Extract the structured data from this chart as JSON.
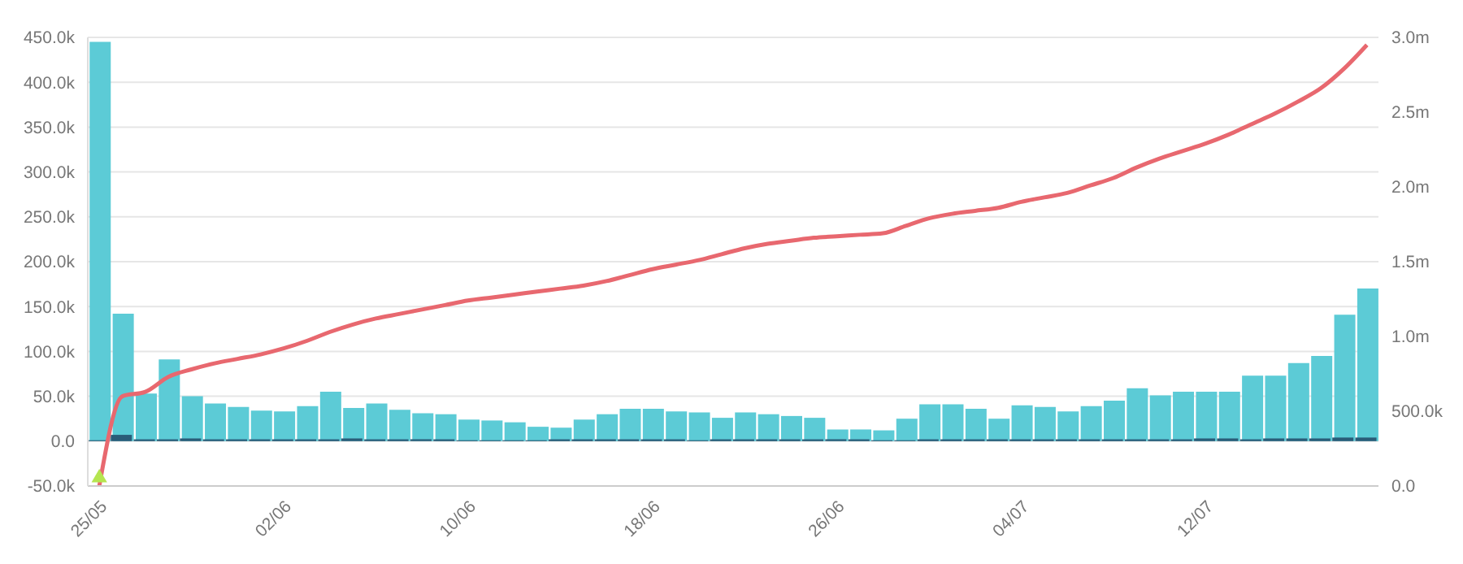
{
  "chart_data": {
    "type": "bar",
    "categories": [
      "25/05",
      null,
      null,
      null,
      null,
      null,
      null,
      null,
      "02/06",
      null,
      null,
      null,
      null,
      null,
      null,
      null,
      "10/06",
      null,
      null,
      null,
      null,
      null,
      null,
      null,
      "18/06",
      null,
      null,
      null,
      null,
      null,
      null,
      null,
      "26/06",
      null,
      null,
      null,
      null,
      null,
      null,
      null,
      "04/07",
      null,
      null,
      null,
      null,
      null,
      null,
      null,
      "12/07",
      null,
      null,
      null,
      null,
      null,
      null,
      null
    ],
    "series": [
      {
        "color": "#5ccbd6",
        "values": [
          445000,
          142000,
          53000,
          91000,
          50000,
          42000,
          38000,
          34000,
          33000,
          39000,
          55000,
          37000,
          42000,
          35000,
          31000,
          30000,
          24000,
          23000,
          21000,
          16000,
          15000,
          24000,
          30000,
          36000,
          36000,
          33000,
          32000,
          26000,
          32000,
          30000,
          28000,
          26000,
          13000,
          13000,
          12000,
          25000,
          41000,
          41000,
          36000,
          25000,
          40000,
          38000,
          33000,
          39000,
          45000,
          59000,
          51000,
          55000,
          55000,
          55000,
          73000,
          73000,
          87000,
          95000,
          141000,
          170000
        ]
      },
      {
        "color": "#2a5c78",
        "values": [
          1000,
          7000,
          2000,
          2000,
          3000,
          2000,
          2000,
          2000,
          2000,
          2000,
          2000,
          3000,
          2000,
          2000,
          2000,
          2000,
          1000,
          1000,
          1000,
          1000,
          2000,
          2000,
          2000,
          2000,
          2000,
          2000,
          1000,
          2000,
          2000,
          2000,
          2000,
          2000,
          2000,
          2000,
          1000,
          1000,
          2000,
          2000,
          2000,
          2000,
          2000,
          2000,
          2000,
          2000,
          2000,
          2000,
          2000,
          2000,
          3000,
          3000,
          2000,
          3000,
          3000,
          3000,
          4000,
          4000
        ]
      },
      {
        "type": "scatter",
        "color": "#b5e550",
        "marker": "triangle",
        "values": [
          -41000,
          null,
          null,
          null,
          null,
          null,
          null,
          null,
          null,
          null,
          null,
          null,
          null,
          null,
          null,
          null,
          null,
          null,
          null,
          null,
          null,
          null,
          null,
          null,
          null,
          null,
          null,
          null,
          null,
          null,
          null,
          null,
          null,
          null,
          null,
          null,
          null,
          null,
          null,
          null,
          null,
          null,
          null,
          null,
          null,
          null,
          null,
          null,
          null,
          null,
          null,
          null,
          null,
          null,
          null,
          null
        ]
      },
      {
        "type": "line",
        "axis": "y2",
        "color": "#e8686f",
        "values": [
          0,
          600000,
          630000,
          730000,
          780000,
          820000,
          850000,
          880000,
          920000,
          970000,
          1030000,
          1080000,
          1120000,
          1150000,
          1180000,
          1210000,
          1240000,
          1260000,
          1280000,
          1300000,
          1320000,
          1340000,
          1370000,
          1410000,
          1450000,
          1480000,
          1510000,
          1550000,
          1590000,
          1620000,
          1640000,
          1660000,
          1670000,
          1680000,
          1690000,
          1740000,
          1790000,
          1820000,
          1840000,
          1860000,
          1900000,
          1930000,
          1960000,
          2010000,
          2060000,
          2130000,
          2190000,
          2240000,
          2290000,
          2350000,
          2420000,
          2490000,
          2570000,
          2660000,
          2790000,
          2950000
        ]
      }
    ],
    "ylim": [
      -50000,
      450000
    ],
    "yticks": [
      {
        "value": -50000,
        "label": "-50.0k"
      },
      {
        "value": 0,
        "label": "0.0"
      },
      {
        "value": 50000,
        "label": "50.0k"
      },
      {
        "value": 100000,
        "label": "100.0k"
      },
      {
        "value": 150000,
        "label": "150.0k"
      },
      {
        "value": 200000,
        "label": "200.0k"
      },
      {
        "value": 250000,
        "label": "250.0k"
      },
      {
        "value": 300000,
        "label": "300.0k"
      },
      {
        "value": 350000,
        "label": "350.0k"
      },
      {
        "value": 400000,
        "label": "400.0k"
      },
      {
        "value": 450000,
        "label": "450.0k"
      }
    ],
    "y2lim": [
      0,
      3000000
    ],
    "y2ticks": [
      {
        "value": 0,
        "label": "0.0"
      },
      {
        "value": 500000,
        "label": "500.0k"
      },
      {
        "value": 1000000,
        "label": "1.0m"
      },
      {
        "value": 1500000,
        "label": "1.5m"
      },
      {
        "value": 2000000,
        "label": "2.0m"
      },
      {
        "value": 2500000,
        "label": "2.5m"
      },
      {
        "value": 3000000,
        "label": "3.0m"
      }
    ],
    "grid": "y",
    "line_style": "solid"
  }
}
